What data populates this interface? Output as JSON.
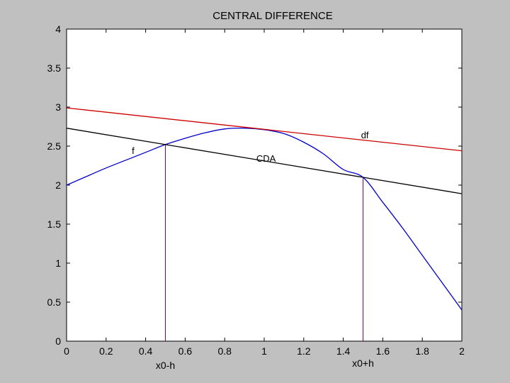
{
  "chart_data": {
    "type": "line",
    "title": "CENTRAL DIFFERENCE",
    "xlabel": "",
    "ylabel": "",
    "xlim": [
      0,
      2
    ],
    "ylim": [
      0,
      4
    ],
    "x_ticks": [
      "0",
      "0.2",
      "0.4",
      "0.6",
      "0.8",
      "1",
      "1.2",
      "1.4",
      "1.6",
      "1.8",
      "2"
    ],
    "y_ticks": [
      "0",
      "0.5",
      "1",
      "1.5",
      "2",
      "2.5",
      "3",
      "3.5",
      "4"
    ],
    "grid": false,
    "series": [
      {
        "name": "f",
        "color": "#0000cc",
        "x": [
          0,
          0.1,
          0.2,
          0.3,
          0.4,
          0.5,
          0.6,
          0.7,
          0.8,
          0.9,
          1.0,
          1.1,
          1.2,
          1.3,
          1.4,
          1.5,
          1.6,
          1.7,
          1.8,
          1.9,
          2.0
        ],
        "y": [
          2.0,
          2.11,
          2.22,
          2.32,
          2.42,
          2.52,
          2.6,
          2.67,
          2.72,
          2.73,
          2.71,
          2.66,
          2.55,
          2.4,
          2.2,
          2.1,
          1.78,
          1.45,
          1.1,
          0.75,
          0.4
        ]
      },
      {
        "name": "df",
        "color": "#cc0000",
        "x": [
          0,
          2
        ],
        "y": [
          2.99,
          2.44
        ]
      },
      {
        "name": "CDA",
        "color": "#000000",
        "x": [
          0,
          2
        ],
        "y": [
          2.73,
          1.89
        ]
      }
    ],
    "markers": [
      {
        "label": "x0-h",
        "x": 0.5,
        "y": 2.52,
        "color": "#800080"
      },
      {
        "label": "x0+h",
        "x": 1.5,
        "y": 2.1,
        "color": "#800080"
      }
    ],
    "annotations": [
      {
        "text": "f",
        "x": 0.33,
        "y": 2.4
      },
      {
        "text": "df",
        "x": 1.49,
        "y": 2.6
      },
      {
        "text": "CDA",
        "x": 0.96,
        "y": 2.3
      }
    ]
  }
}
